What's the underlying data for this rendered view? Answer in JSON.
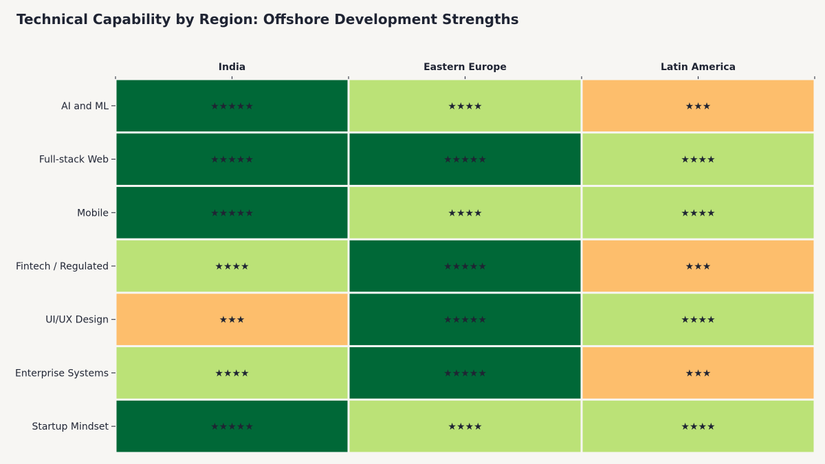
{
  "title": "Technical Capability by Region: Offshore Development Strengths",
  "chart_data": {
    "type": "heatmap",
    "title": "Technical Capability by Region: Offshore Development Strengths",
    "columns": [
      "India",
      "Eastern Europe",
      "Latin America"
    ],
    "rows": [
      "AI and ML",
      "Full-stack Web",
      "Mobile",
      "Fintech / Regulated",
      "UI/UX Design",
      "Enterprise Systems",
      "Startup Mindset"
    ],
    "values": [
      [
        5,
        4,
        3
      ],
      [
        5,
        5,
        4
      ],
      [
        5,
        4,
        4
      ],
      [
        4,
        5,
        3
      ],
      [
        3,
        5,
        4
      ],
      [
        4,
        5,
        3
      ],
      [
        5,
        4,
        4
      ]
    ],
    "cell_labels": [
      [
        "★★★★★",
        "★★★★",
        "★★★"
      ],
      [
        "★★★★★",
        "★★★★★",
        "★★★★"
      ],
      [
        "★★★★★",
        "★★★★",
        "★★★★"
      ],
      [
        "★★★★",
        "★★★★★",
        "★★★"
      ],
      [
        "★★★",
        "★★★★★",
        "★★★★"
      ],
      [
        "★★★★",
        "★★★★★",
        "★★★"
      ],
      [
        "★★★★★",
        "★★★★",
        "★★★★"
      ]
    ],
    "color_scale": {
      "3": "#fdbe6c",
      "4": "#bbe277",
      "5": "#006837"
    },
    "column_axis_position": "top",
    "grid": false
  }
}
